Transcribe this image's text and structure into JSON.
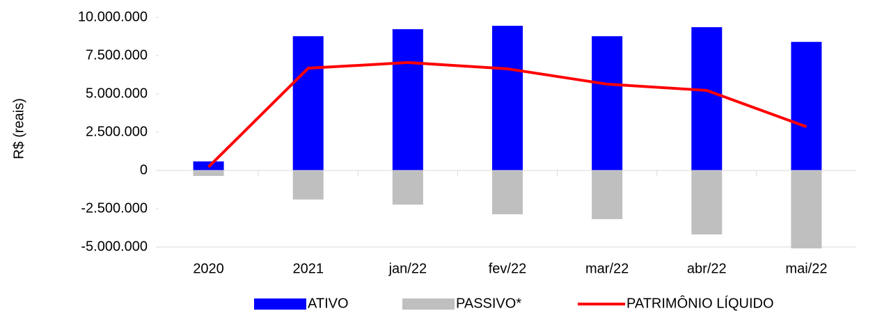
{
  "chart_data": {
    "type": "bar-line",
    "y_label": "R$ (reais)",
    "categories": [
      "2020",
      "2021",
      "jan/22",
      "fev/22",
      "mar/22",
      "abr/22",
      "mai/22"
    ],
    "series": [
      {
        "name": "ATIVO",
        "type": "bar",
        "color": "#0000ff",
        "values": [
          590000,
          8770000,
          9230000,
          9450000,
          8770000,
          9360000,
          8400000
        ]
      },
      {
        "name": "PASSIVO*",
        "type": "bar",
        "color": "#bfbfbf",
        "values": [
          -360000,
          -1900000,
          -2230000,
          -2860000,
          -3180000,
          -4180000,
          -5090000
        ]
      },
      {
        "name": "PATRIMÔNIO LÍQUIDO",
        "type": "line",
        "color": "#ff0000",
        "values": [
          230000,
          6680000,
          7050000,
          6640000,
          5640000,
          5230000,
          2860000
        ]
      }
    ],
    "ylim": [
      -5000000,
      10000000
    ],
    "yticks": [
      {
        "value": -5000000,
        "label": "-5.000.000"
      },
      {
        "value": -2500000,
        "label": "-2.500.000"
      },
      0,
      {
        "value": 2500000,
        "label": "2.500.000"
      },
      {
        "value": 5000000,
        "label": "5.000.000"
      },
      {
        "value": 7500000,
        "label": "7.500.000"
      },
      {
        "value": 10000000,
        "label": "10.000.000"
      }
    ],
    "legend": "bottom"
  }
}
